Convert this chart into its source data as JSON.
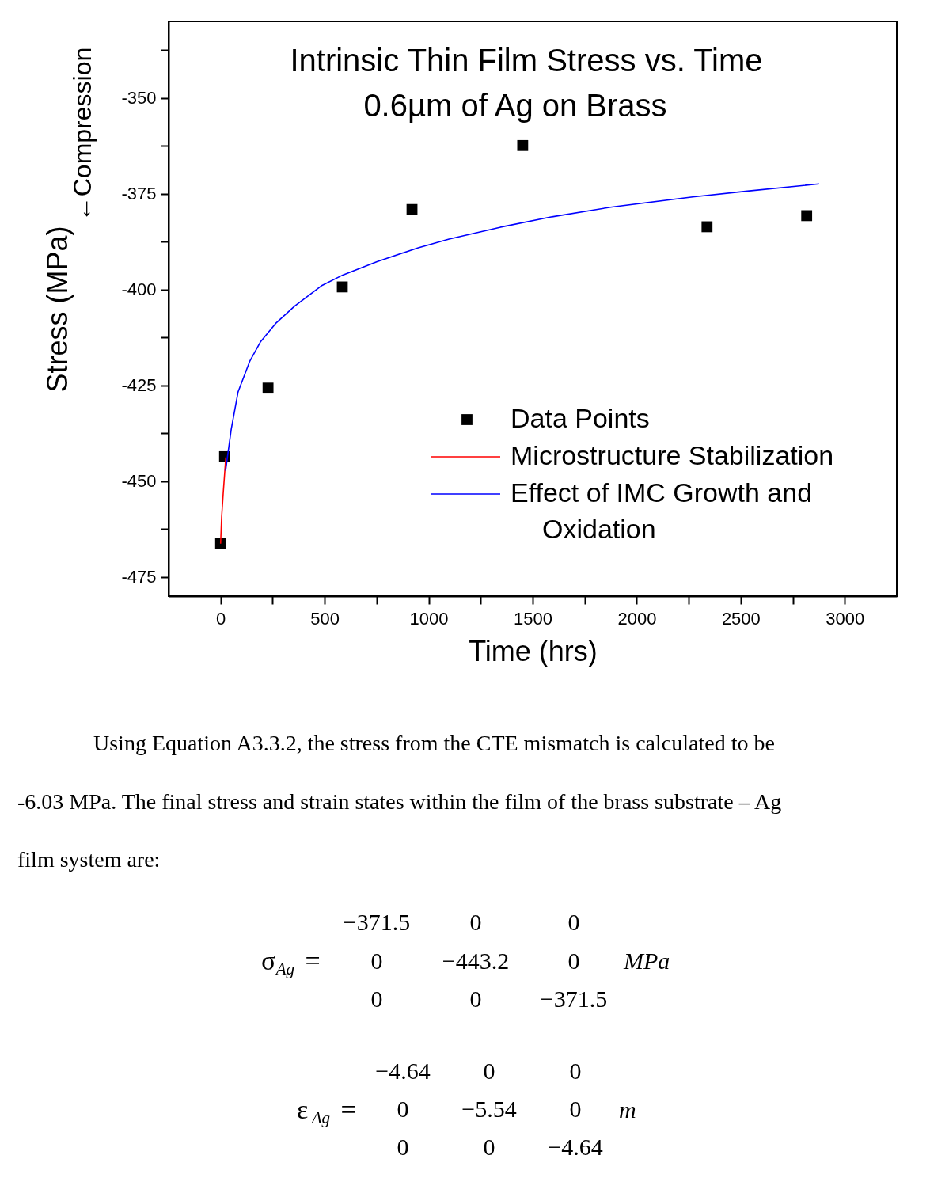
{
  "chart_data": {
    "type": "scatter",
    "title": "Intrinsic Thin Film Stress vs. Time",
    "subtitle": "0.6µm of Ag on Brass",
    "xlabel": "Time (hrs)",
    "ylabel": "Stress (MPa)",
    "series": [
      {
        "name": "Data Points",
        "marker": "square",
        "color": "#000000",
        "x": [
          0,
          19,
          228,
          585,
          920,
          1452,
          2338,
          2817
        ],
        "values": [
          -466.3,
          -443.6,
          -425.7,
          -399.3,
          -379.1,
          -362.4,
          -383.6,
          -380.7
        ]
      },
      {
        "name": "Microstructure Stabilization",
        "type": "line",
        "color": "#ff0000",
        "x": [
          0,
          5,
          13,
          25
        ],
        "values": [
          -466.3,
          -459.4,
          -452.8,
          -443.8
        ]
      },
      {
        "name": "Effect of IMC Growth and Oxidation",
        "type": "line",
        "color": "#0000ff",
        "x": [
          24,
          51,
          84,
          141,
          191,
          265,
          356,
          488,
          587,
          752,
          950,
          1098,
          1346,
          1593,
          1874,
          2269,
          2532,
          2877
        ],
        "values": [
          -447.3,
          -436.5,
          -426.7,
          -418.6,
          -413.7,
          -408.8,
          -404.3,
          -398.9,
          -396.2,
          -392.7,
          -389.1,
          -386.8,
          -383.7,
          -381.0,
          -378.5,
          -375.8,
          -374.3,
          -372.4
        ]
      }
    ],
    "xlim": [
      -250,
      3250
    ],
    "xticks": [
      0,
      {
        "value": 250,
        "label": null
      },
      500,
      {
        "value": 750,
        "label": null
      },
      1000,
      {
        "value": 1250,
        "label": null
      },
      1500,
      {
        "value": 1750,
        "label": null
      },
      2000,
      {
        "value": 2250,
        "label": null
      },
      2500,
      {
        "value": 2750,
        "label": null
      },
      3000
    ],
    "ylim": [
      -480,
      -330
    ],
    "yticks": [
      -475,
      {
        "value": -462.5,
        "label": null
      },
      -450,
      {
        "value": -437.5,
        "label": null
      },
      -425,
      {
        "value": -412.5,
        "label": null
      },
      -400,
      {
        "value": -387.5,
        "label": null
      },
      -375,
      {
        "value": -362.5,
        "label": null
      },
      -350,
      {
        "value": -337.5,
        "label": null
      }
    ],
    "grid": false,
    "legend": "bottom right",
    "annotations": [
      "←Compression",
      "Using Equation A3.3.2, the stress from the CTE mismatch is calculated to be",
      "-6.03 MPa.  The final stress and strain states within the film of the brass substrate – Ag",
      "film system are:",
      "σ$_{Ag}$ =",
      "−371.5",
      "0",
      "0",
      "0",
      "−443.2",
      "0",
      "0",
      "0",
      "−371.5",
      "MPa",
      "ε$_{Ag}$ =",
      "−4.64",
      "0",
      "0",
      "0",
      "−5.54",
      "0",
      "0",
      "0",
      "−4.64",
      "m"
    ]
  }
}
